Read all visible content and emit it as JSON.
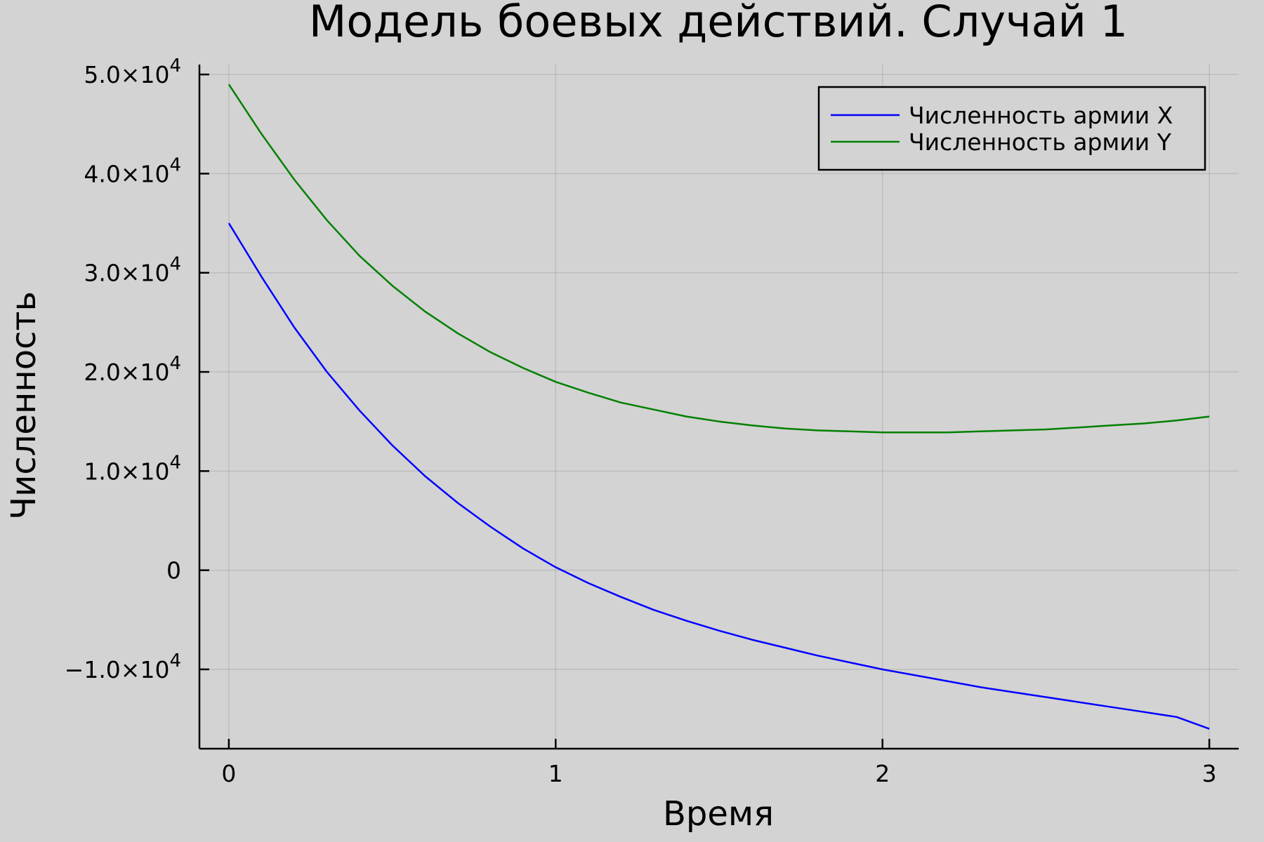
{
  "chart_data": {
    "type": "line",
    "title": "Модель боевых действий. Случай 1",
    "xlabel": "Время",
    "ylabel": "Численность",
    "xlim": [
      -0.09,
      3.09
    ],
    "ylim": [
      -18000,
      51000
    ],
    "x_ticks": [
      {
        "value": 0,
        "label": "0"
      },
      {
        "value": 1,
        "label": "1"
      },
      {
        "value": 2,
        "label": "2"
      },
      {
        "value": 3,
        "label": "3"
      }
    ],
    "y_ticks": [
      {
        "value": -10000,
        "mantissa": "−1.0×10",
        "exp": "4"
      },
      {
        "value": 0,
        "mantissa": "0",
        "exp": ""
      },
      {
        "value": 10000,
        "mantissa": "1.0×10",
        "exp": "4"
      },
      {
        "value": 20000,
        "mantissa": "2.0×10",
        "exp": "4"
      },
      {
        "value": 30000,
        "mantissa": "3.0×10",
        "exp": "4"
      },
      {
        "value": 40000,
        "mantissa": "4.0×10",
        "exp": "4"
      },
      {
        "value": 50000,
        "mantissa": "5.0×10",
        "exp": "4"
      }
    ],
    "grid": true,
    "legend_position": "top-right",
    "x": [
      0,
      0.1,
      0.2,
      0.3,
      0.4,
      0.5,
      0.6,
      0.7,
      0.8,
      0.9,
      1.0,
      1.1,
      1.2,
      1.3,
      1.4,
      1.5,
      1.6,
      1.7,
      1.8,
      1.9,
      2.0,
      2.1,
      2.2,
      2.3,
      2.4,
      2.5,
      2.6,
      2.7,
      2.8,
      2.9,
      3.0
    ],
    "series": [
      {
        "name": "Численность армии X",
        "color": "#0000ff",
        "values": [
          35000,
          29600,
          24500,
          20000,
          16100,
          12600,
          9500,
          6800,
          4400,
          2200,
          300,
          -1300,
          -2700,
          -4000,
          -5100,
          -6100,
          -7000,
          -7800,
          -8600,
          -9300,
          -10000,
          -10600,
          -11200,
          -11800,
          -12300,
          -12800,
          -13300,
          -13800,
          -14300,
          -14800,
          -16000
        ]
      },
      {
        "name": "Численность армии Y",
        "color": "#008000",
        "values": [
          49000,
          44000,
          39400,
          35300,
          31700,
          28700,
          26100,
          23900,
          22000,
          20400,
          19000,
          17900,
          16900,
          16200,
          15500,
          15000,
          14600,
          14300,
          14100,
          14000,
          13900,
          13900,
          13900,
          14000,
          14100,
          14200,
          14400,
          14600,
          14800,
          15100,
          15500
        ]
      }
    ]
  }
}
